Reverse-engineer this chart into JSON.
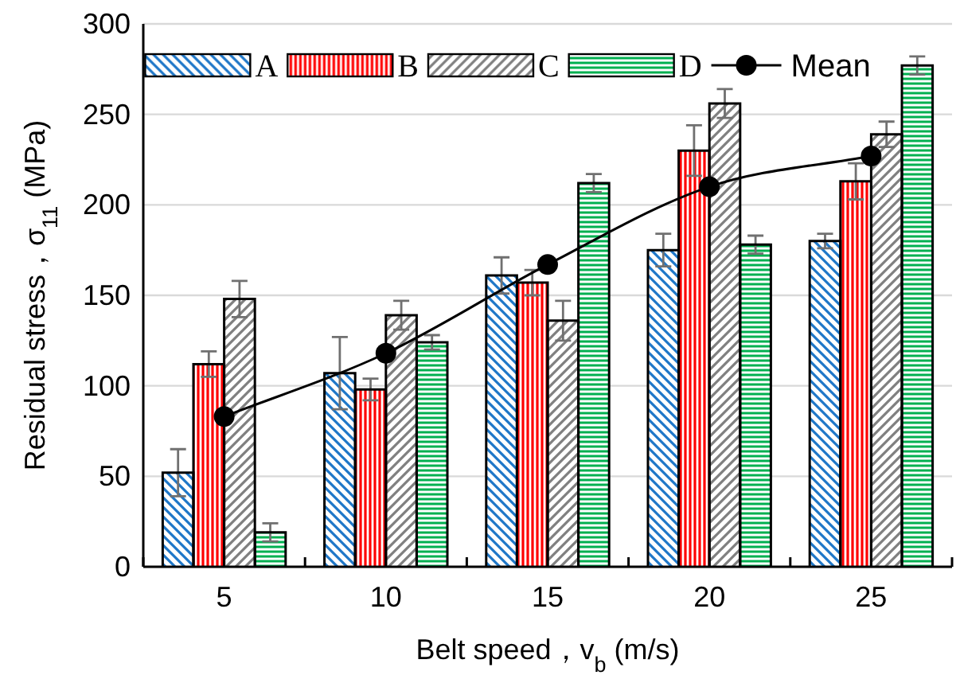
{
  "chart_data": {
    "type": "bar",
    "xlabel": "Belt speed，v$_{b}$ (m/s)",
    "ylabel": "Residual stress，σ$_{11}$ (MPa)",
    "categories": [
      "5",
      "10",
      "15",
      "20",
      "25"
    ],
    "series": [
      {
        "name": "A",
        "color": "#1f77c8",
        "values": [
          52,
          107,
          161,
          175,
          180
        ],
        "errors": [
          13,
          20,
          10,
          9,
          4
        ]
      },
      {
        "name": "B",
        "color": "#ff0000",
        "values": [
          112,
          98,
          157,
          230,
          213
        ],
        "errors": [
          7,
          6,
          7,
          14,
          10
        ]
      },
      {
        "name": "C",
        "color": "#808080",
        "values": [
          148,
          139,
          136,
          256,
          239
        ],
        "errors": [
          10,
          8,
          11,
          8,
          7
        ]
      },
      {
        "name": "D",
        "color": "#00b050",
        "values": [
          19,
          124,
          212,
          178,
          277
        ],
        "errors": [
          5,
          4,
          5,
          5,
          5
        ]
      },
      {
        "name": "Mean",
        "type": "line",
        "color": "#000000",
        "marker": "circle",
        "values": [
          83,
          118,
          167,
          210,
          227
        ]
      }
    ],
    "ylim": [
      0,
      300
    ],
    "yticks": [
      0,
      50,
      100,
      150,
      200,
      250,
      300
    ],
    "grid": "y",
    "legend": "top"
  }
}
